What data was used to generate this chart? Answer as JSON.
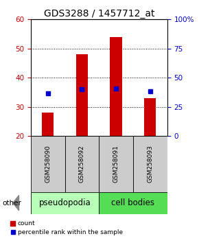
{
  "title": "GDS3288 / 1457712_at",
  "samples": [
    "GSM258090",
    "GSM258092",
    "GSM258091",
    "GSM258093"
  ],
  "counts": [
    28,
    48,
    54,
    33
  ],
  "percentiles": [
    36.5,
    40.0,
    41.0,
    38.5
  ],
  "ylim_left": [
    20,
    60
  ],
  "ylim_right": [
    0,
    100
  ],
  "yticks_left": [
    20,
    30,
    40,
    50,
    60
  ],
  "yticks_right": [
    0,
    25,
    50,
    75,
    100
  ],
  "bar_color": "#cc0000",
  "dot_color": "#0000cc",
  "bar_width": 0.35,
  "group_labels": [
    "pseudopodia",
    "cell bodies"
  ],
  "group_colors": [
    "#b8ffb8",
    "#55dd55"
  ],
  "other_label": "other",
  "legend_count_label": "count",
  "legend_pct_label": "percentile rank within the sample",
  "title_fontsize": 10,
  "tick_fontsize": 7.5,
  "group_fontsize": 8.5,
  "background_color": "#ffffff",
  "yticklabel_left_color": "#cc0000",
  "yticklabel_right_color": "#0000cc",
  "label_box_color": "#cccccc",
  "label_fontsize": 6.5
}
